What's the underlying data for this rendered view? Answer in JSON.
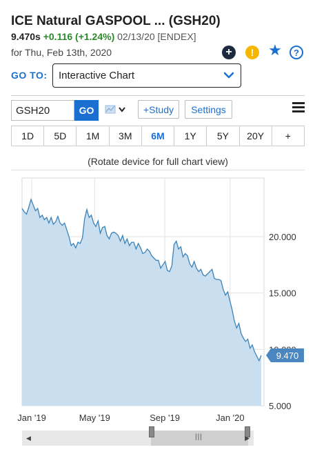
{
  "header": {
    "title": "ICE Natural GASPOOL ...  (GSH20)",
    "last": "9.470s",
    "change": "+0.116 (+1.24%)",
    "meta": "02/13/20 [ENDEX]",
    "as_of": "for Thu, Feb 13th, 2020"
  },
  "icons": [
    "plus-circle-icon",
    "alert-icon",
    "star-icon",
    "help-icon"
  ],
  "goto": {
    "label": "GO TO:",
    "selected": "Interactive Chart"
  },
  "toolbar": {
    "symbol": "GSH20",
    "go_label": "GO",
    "study_label": "+Study",
    "settings_label": "Settings"
  },
  "ranges": [
    {
      "label": "1D",
      "active": false
    },
    {
      "label": "5D",
      "active": false
    },
    {
      "label": "1M",
      "active": false
    },
    {
      "label": "3M",
      "active": false
    },
    {
      "label": "6M",
      "active": true
    },
    {
      "label": "1Y",
      "active": false
    },
    {
      "label": "5Y",
      "active": false
    },
    {
      "label": "20Y",
      "active": false
    },
    {
      "label": "+",
      "active": false
    }
  ],
  "rotate_note": "(Rotate device for full chart view)",
  "chart_data": {
    "type": "area",
    "x_tick_labels": [
      "Jan '19",
      "May '19",
      "Sep '19",
      "Jan '20"
    ],
    "y_tick_labels": [
      "5.000",
      "10.000",
      "15.000",
      "20.000"
    ],
    "ylim": [
      5,
      25.2
    ],
    "grid": true,
    "last_price_label": "9.470",
    "fill_color": "#c9dff0",
    "line_color": "#3b82b8",
    "series": [
      {
        "values": [
          22.5,
          22.2,
          22.0,
          22.6,
          23.3,
          22.8,
          22.3,
          22.5,
          21.7,
          21.9,
          21.5,
          21.7,
          21.2,
          21.7,
          21.1,
          21.3,
          21.8,
          21.2,
          21.0,
          21.2,
          20.6,
          20.0,
          19.2,
          19.4,
          19.0,
          19.5,
          19.4,
          19.9,
          21.6,
          22.4,
          21.7,
          21.9,
          21.2,
          20.9,
          21.4,
          20.3,
          20.8,
          20.9,
          20.1,
          19.8,
          20.3,
          20.4,
          20.3,
          20.1,
          19.6,
          20.1,
          19.4,
          19.8,
          19.2,
          19.5,
          19.5,
          18.9,
          19.4,
          19.0,
          18.5,
          18.6,
          18.9,
          18.7,
          18.3,
          18.1,
          17.9,
          17.9,
          17.2,
          17.5,
          17.8,
          17.0,
          16.9,
          17.4,
          19.3,
          19.6,
          18.9,
          19.1,
          18.2,
          18.5,
          18.3,
          17.6,
          17.3,
          17.8,
          17.2,
          16.9,
          17.1,
          16.6,
          16.5,
          16.7,
          16.9,
          17.1,
          16.3,
          16.2,
          16.2,
          16.1,
          15.3,
          14.8,
          15.1,
          14.3,
          13.5,
          12.5,
          11.9,
          12.3,
          11.4,
          11.0,
          10.7,
          10.9,
          10.1,
          10.4,
          9.8,
          9.4,
          9.0,
          9.47
        ]
      }
    ]
  }
}
